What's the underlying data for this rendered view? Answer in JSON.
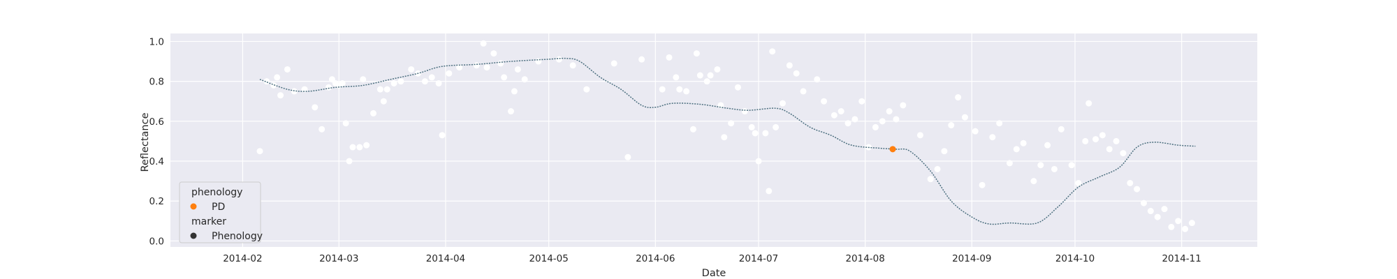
{
  "chart_data": {
    "type": "scatter",
    "xlabel": "Date",
    "ylabel": "Reflectance",
    "xlim": [
      "2014-01-11",
      "2014-11-23"
    ],
    "ylim": [
      -0.03,
      1.04
    ],
    "grid": true,
    "background": "#eaeaf2",
    "x_ticks": [
      "2014-02",
      "2014-03",
      "2014-04",
      "2014-05",
      "2014-06",
      "2014-07",
      "2014-08",
      "2014-09",
      "2014-10",
      "2014-11"
    ],
    "y_ticks": [
      0.0,
      0.2,
      0.4,
      0.6,
      0.8,
      1.0
    ],
    "y_tick_labels": [
      "0.0",
      "0.2",
      "0.4",
      "0.6",
      "0.8",
      "1.0"
    ],
    "smooth_curve": {
      "name": "",
      "color": "#4c6f7f",
      "x": [
        "2014-02-06",
        "2014-02-14",
        "2014-02-20",
        "2014-02-28",
        "2014-03-08",
        "2014-03-16",
        "2014-03-24",
        "2014-03-31",
        "2014-04-10",
        "2014-04-20",
        "2014-04-30",
        "2014-05-06",
        "2014-05-10",
        "2014-05-16",
        "2014-05-22",
        "2014-05-28",
        "2014-06-01",
        "2014-06-06",
        "2014-06-14",
        "2014-06-22",
        "2014-06-28",
        "2014-07-06",
        "2014-07-10",
        "2014-07-16",
        "2014-07-22",
        "2014-07-28",
        "2014-08-05",
        "2014-08-10",
        "2014-08-14",
        "2014-08-20",
        "2014-08-26",
        "2014-09-01",
        "2014-09-06",
        "2014-09-12",
        "2014-09-20",
        "2014-09-26",
        "2014-10-02",
        "2014-10-08",
        "2014-10-14",
        "2014-10-19",
        "2014-10-24",
        "2014-10-31",
        "2014-11-05"
      ],
      "y": [
        0.81,
        0.76,
        0.75,
        0.77,
        0.78,
        0.81,
        0.84,
        0.875,
        0.885,
        0.9,
        0.91,
        0.915,
        0.9,
        0.82,
        0.76,
        0.68,
        0.67,
        0.69,
        0.685,
        0.665,
        0.655,
        0.665,
        0.64,
        0.57,
        0.53,
        0.48,
        0.465,
        0.46,
        0.45,
        0.35,
        0.2,
        0.12,
        0.085,
        0.09,
        0.09,
        0.17,
        0.27,
        0.32,
        0.37,
        0.47,
        0.495,
        0.48,
        0.475
      ]
    },
    "observations": {
      "name": "",
      "color": "#ffffff",
      "points": [
        [
          "2014-02-06",
          0.45
        ],
        [
          "2014-02-08",
          0.8
        ],
        [
          "2014-02-10",
          0.78
        ],
        [
          "2014-02-11",
          0.82
        ],
        [
          "2014-02-12",
          0.73
        ],
        [
          "2014-02-14",
          0.86
        ],
        [
          "2014-02-16",
          0.75
        ],
        [
          "2014-02-19",
          0.76
        ],
        [
          "2014-02-22",
          0.67
        ],
        [
          "2014-02-24",
          0.56
        ],
        [
          "2014-02-26",
          0.77
        ],
        [
          "2014-02-27",
          0.81
        ],
        [
          "2014-02-28",
          0.79
        ],
        [
          "2014-03-01",
          0.78
        ],
        [
          "2014-03-02",
          0.79
        ],
        [
          "2014-03-03",
          0.59
        ],
        [
          "2014-03-04",
          0.4
        ],
        [
          "2014-03-05",
          0.47
        ],
        [
          "2014-03-07",
          0.47
        ],
        [
          "2014-03-08",
          0.81
        ],
        [
          "2014-03-09",
          0.48
        ],
        [
          "2014-03-11",
          0.64
        ],
        [
          "2014-03-13",
          0.76
        ],
        [
          "2014-03-14",
          0.7
        ],
        [
          "2014-03-15",
          0.76
        ],
        [
          "2014-03-17",
          0.79
        ],
        [
          "2014-03-19",
          0.8
        ],
        [
          "2014-03-22",
          0.86
        ],
        [
          "2014-03-24",
          0.84
        ],
        [
          "2014-03-26",
          0.8
        ],
        [
          "2014-03-28",
          0.82
        ],
        [
          "2014-03-30",
          0.79
        ],
        [
          "2014-03-31",
          0.53
        ],
        [
          "2014-04-02",
          0.84
        ],
        [
          "2014-04-05",
          0.87
        ],
        [
          "2014-04-10",
          0.88
        ],
        [
          "2014-04-12",
          0.99
        ],
        [
          "2014-04-13",
          0.87
        ],
        [
          "2014-04-15",
          0.94
        ],
        [
          "2014-04-17",
          0.89
        ],
        [
          "2014-04-18",
          0.82
        ],
        [
          "2014-04-20",
          0.65
        ],
        [
          "2014-04-21",
          0.75
        ],
        [
          "2014-04-22",
          0.86
        ],
        [
          "2014-04-24",
          0.81
        ],
        [
          "2014-04-28",
          0.9
        ],
        [
          "2014-05-04",
          0.91
        ],
        [
          "2014-05-08",
          0.88
        ],
        [
          "2014-05-12",
          0.76
        ],
        [
          "2014-05-20",
          0.89
        ],
        [
          "2014-05-24",
          0.42
        ],
        [
          "2014-05-28",
          0.91
        ],
        [
          "2014-06-03",
          0.76
        ],
        [
          "2014-06-05",
          0.92
        ],
        [
          "2014-06-07",
          0.82
        ],
        [
          "2014-06-08",
          0.76
        ],
        [
          "2014-06-10",
          0.75
        ],
        [
          "2014-06-12",
          0.56
        ],
        [
          "2014-06-13",
          0.94
        ],
        [
          "2014-06-14",
          0.83
        ],
        [
          "2014-06-16",
          0.8
        ],
        [
          "2014-06-17",
          0.83
        ],
        [
          "2014-06-19",
          0.86
        ],
        [
          "2014-06-20",
          0.68
        ],
        [
          "2014-06-21",
          0.52
        ],
        [
          "2014-06-23",
          0.59
        ],
        [
          "2014-06-25",
          0.77
        ],
        [
          "2014-06-27",
          0.65
        ],
        [
          "2014-06-29",
          0.57
        ],
        [
          "2014-06-30",
          0.54
        ],
        [
          "2014-07-01",
          0.4
        ],
        [
          "2014-07-03",
          0.54
        ],
        [
          "2014-07-04",
          0.25
        ],
        [
          "2014-07-05",
          0.95
        ],
        [
          "2014-07-06",
          0.57
        ],
        [
          "2014-07-08",
          0.69
        ],
        [
          "2014-07-10",
          0.88
        ],
        [
          "2014-07-12",
          0.84
        ],
        [
          "2014-07-14",
          0.75
        ],
        [
          "2014-07-18",
          0.81
        ],
        [
          "2014-07-20",
          0.7
        ],
        [
          "2014-07-23",
          0.63
        ],
        [
          "2014-07-25",
          0.65
        ],
        [
          "2014-07-27",
          0.59
        ],
        [
          "2014-07-29",
          0.61
        ],
        [
          "2014-07-31",
          0.7
        ],
        [
          "2014-08-02",
          0.47
        ],
        [
          "2014-08-04",
          0.57
        ],
        [
          "2014-08-06",
          0.6
        ],
        [
          "2014-08-08",
          0.65
        ],
        [
          "2014-08-10",
          0.61
        ],
        [
          "2014-08-12",
          0.68
        ],
        [
          "2014-08-17",
          0.53
        ],
        [
          "2014-08-20",
          0.31
        ],
        [
          "2014-08-22",
          0.36
        ],
        [
          "2014-08-24",
          0.45
        ],
        [
          "2014-08-26",
          0.58
        ],
        [
          "2014-08-28",
          0.72
        ],
        [
          "2014-08-30",
          0.62
        ],
        [
          "2014-09-02",
          0.55
        ],
        [
          "2014-09-04",
          0.28
        ],
        [
          "2014-09-07",
          0.52
        ],
        [
          "2014-09-09",
          0.59
        ],
        [
          "2014-09-12",
          0.39
        ],
        [
          "2014-09-14",
          0.46
        ],
        [
          "2014-09-16",
          0.49
        ],
        [
          "2014-09-19",
          0.3
        ],
        [
          "2014-09-21",
          0.38
        ],
        [
          "2014-09-23",
          0.48
        ],
        [
          "2014-09-25",
          0.36
        ],
        [
          "2014-09-27",
          0.56
        ],
        [
          "2014-09-30",
          0.38
        ],
        [
          "2014-10-02",
          0.29
        ],
        [
          "2014-10-04",
          0.5
        ],
        [
          "2014-10-05",
          0.69
        ],
        [
          "2014-10-07",
          0.51
        ],
        [
          "2014-10-09",
          0.53
        ],
        [
          "2014-10-11",
          0.46
        ],
        [
          "2014-10-13",
          0.5
        ],
        [
          "2014-10-15",
          0.44
        ],
        [
          "2014-10-17",
          0.29
        ],
        [
          "2014-10-19",
          0.26
        ],
        [
          "2014-10-21",
          0.19
        ],
        [
          "2014-10-23",
          0.15
        ],
        [
          "2014-10-25",
          0.12
        ],
        [
          "2014-10-27",
          0.16
        ],
        [
          "2014-10-29",
          0.07
        ],
        [
          "2014-10-31",
          0.1
        ],
        [
          "2014-11-02",
          0.06
        ],
        [
          "2014-11-04",
          0.09
        ]
      ]
    },
    "highlight": {
      "name": "PD",
      "color": "#ff7f0e",
      "x": "2014-08-09",
      "y": 0.46
    },
    "legend": {
      "placement": "lower-left",
      "entries": [
        {
          "kind": "title",
          "label": "phenology"
        },
        {
          "kind": "marker",
          "label": "PD",
          "color": "#ff7f0e"
        },
        {
          "kind": "title",
          "label": "marker"
        },
        {
          "kind": "marker",
          "label": "Phenology",
          "color": "#333333"
        }
      ]
    }
  }
}
